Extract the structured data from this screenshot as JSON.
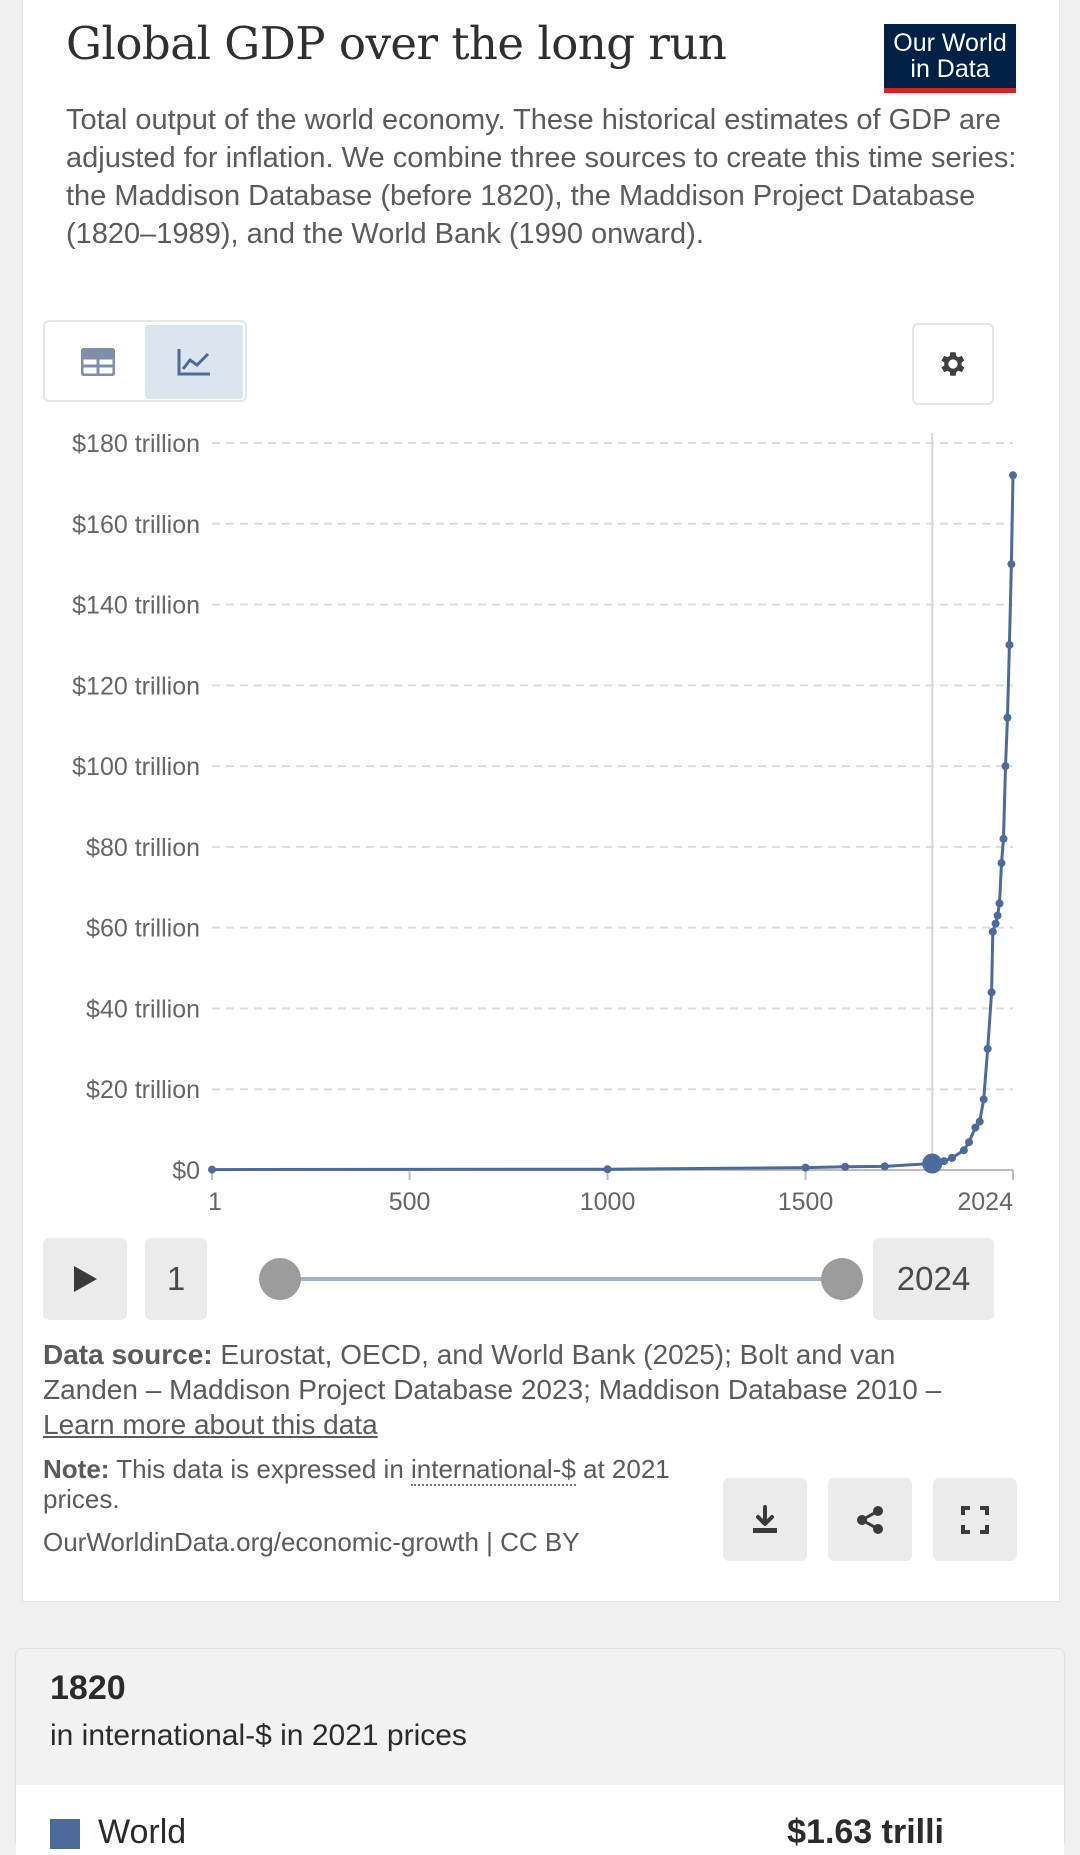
{
  "header": {
    "title": "Global GDP over the long run",
    "subtitle": "Total output of the world economy. These historical estimates of GDP are adjusted for inflation. We combine three sources to create this time series: the Maddison Database (before 1820), the Maddison Project Database (1820–1989), and the World Bank (1990 onward).",
    "logo_line1": "Our World",
    "logo_line2": "in Data"
  },
  "controls": {
    "table_tab": "table-icon",
    "chart_tab": "line-chart-icon",
    "settings": "gear-icon"
  },
  "chart_data": {
    "type": "line",
    "title": "Global GDP over the long run",
    "xlabel": "",
    "ylabel": "",
    "xlim": [
      1,
      2024
    ],
    "ylim": [
      0,
      180
    ],
    "y_ticks": [
      "$0",
      "$20 trillion",
      "$40 trillion",
      "$60 trillion",
      "$80 trillion",
      "$100 trillion",
      "$120 trillion",
      "$140 trillion",
      "$160 trillion",
      "$180 trillion"
    ],
    "y_tick_values": [
      0,
      20,
      40,
      60,
      80,
      100,
      120,
      140,
      160,
      180
    ],
    "x_ticks": [
      "1",
      "500",
      "1000",
      "1500",
      "2024"
    ],
    "x_tick_values": [
      1,
      500,
      1000,
      1500,
      2024
    ],
    "grid": true,
    "highlight_year": 1820,
    "series": [
      {
        "name": "World",
        "color": "#4c6a9c",
        "x": [
          1,
          1000,
          1500,
          1600,
          1700,
          1820,
          1850,
          1870,
          1900,
          1913,
          1929,
          1940,
          1950,
          1960,
          1970,
          1973,
          1980,
          1985,
          1990,
          1995,
          2000,
          2005,
          2010,
          2015,
          2020,
          2024
        ],
        "y": [
          0.1,
          0.2,
          0.6,
          0.8,
          0.9,
          1.6,
          2.2,
          3.0,
          4.9,
          6.9,
          10.5,
          12.0,
          17.5,
          30.0,
          44.0,
          59.0,
          61.0,
          63.0,
          66.0,
          76.0,
          82.0,
          100.0,
          112.0,
          130.0,
          150.0,
          172.0
        ]
      }
    ]
  },
  "timeline": {
    "play_icon": "play-icon",
    "start_label": "1",
    "end_label": "2024"
  },
  "footer": {
    "source_label": "Data source:",
    "source_text": " Eurostat, OECD, and World Bank (2025); Bolt and van Zanden – Maddison Project Database 2023; Maddison Database 2010 – ",
    "learn_more": "Learn more about this data",
    "note_label": "Note:",
    "note_text_before": " This data is expressed in ",
    "note_link": "international-$",
    "note_text_after": " at 2021 prices.",
    "url": "OurWorldinData.org/economic-growth | CC BY"
  },
  "actions": {
    "download": "download-icon",
    "share": "share-icon",
    "fullscreen": "fullscreen-icon"
  },
  "tooltip": {
    "year": "1820",
    "unit": "in international-$ in 2021 prices",
    "entity": "World",
    "value": "$1.63 trilli"
  }
}
